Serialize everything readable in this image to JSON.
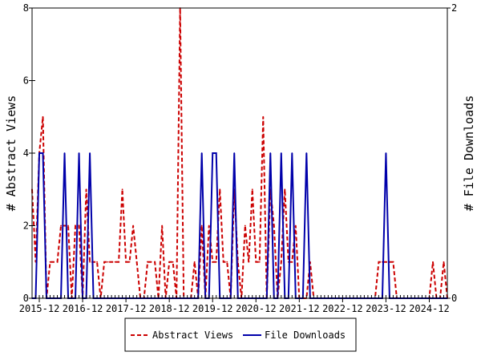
{
  "chart_data": {
    "type": "line",
    "title": "",
    "xlabel": "",
    "ylabel_left": "# Abstract Views",
    "ylabel_right": "# File Downloads",
    "x_range": [
      "2015-10",
      "2025-05"
    ],
    "x_tick_labels": [
      "2015-12",
      "2016-12",
      "2017-12",
      "2018-12",
      "2019-12",
      "2020-12",
      "2021-12",
      "2022-12",
      "2023-12",
      "2024-12"
    ],
    "y_left": {
      "min": 0,
      "max": 8,
      "ticks": [
        "0",
        "2",
        "4",
        "6",
        "8"
      ]
    },
    "y_right": {
      "min": 0,
      "max": 2,
      "ticks": [
        "0",
        "2"
      ]
    },
    "grid": false,
    "legend_position": "bottom",
    "series": [
      {
        "name": "Abstract Views",
        "axis": "left",
        "color": "#cc0000",
        "style": "dashed",
        "points": [
          [
            "2015-10",
            3
          ],
          [
            "2015-11",
            1
          ],
          [
            "2015-12",
            4
          ],
          [
            "2016-01",
            5
          ],
          [
            "2016-02",
            0
          ],
          [
            "2016-03",
            1
          ],
          [
            "2016-04",
            1
          ],
          [
            "2016-05",
            1
          ],
          [
            "2016-06",
            2
          ],
          [
            "2016-07",
            2
          ],
          [
            "2016-08",
            2
          ],
          [
            "2016-09",
            0
          ],
          [
            "2016-10",
            2
          ],
          [
            "2016-11",
            2
          ],
          [
            "2016-12",
            0
          ],
          [
            "2017-01",
            3
          ],
          [
            "2017-02",
            1
          ],
          [
            "2017-03",
            1
          ],
          [
            "2017-04",
            1
          ],
          [
            "2017-05",
            0
          ],
          [
            "2017-06",
            1
          ],
          [
            "2017-07",
            1
          ],
          [
            "2017-08",
            1
          ],
          [
            "2017-09",
            1
          ],
          [
            "2017-10",
            1
          ],
          [
            "2017-11",
            3
          ],
          [
            "2017-12",
            1
          ],
          [
            "2018-01",
            1
          ],
          [
            "2018-02",
            2
          ],
          [
            "2018-03",
            1
          ],
          [
            "2018-04",
            0
          ],
          [
            "2018-05",
            0
          ],
          [
            "2018-06",
            1
          ],
          [
            "2018-07",
            1
          ],
          [
            "2018-08",
            1
          ],
          [
            "2018-09",
            0
          ],
          [
            "2018-10",
            2
          ],
          [
            "2018-11",
            0
          ],
          [
            "2018-12",
            1
          ],
          [
            "2019-01",
            1
          ],
          [
            "2019-02",
            0
          ],
          [
            "2019-03",
            8
          ],
          [
            "2019-04",
            0
          ],
          [
            "2019-05",
            0
          ],
          [
            "2019-06",
            0
          ],
          [
            "2019-07",
            1
          ],
          [
            "2019-08",
            0
          ],
          [
            "2019-09",
            2
          ],
          [
            "2019-10",
            0
          ],
          [
            "2019-11",
            2
          ],
          [
            "2019-12",
            1
          ],
          [
            "2020-01",
            1
          ],
          [
            "2020-02",
            3
          ],
          [
            "2020-03",
            1
          ],
          [
            "2020-04",
            1
          ],
          [
            "2020-05",
            0
          ],
          [
            "2020-06",
            3
          ],
          [
            "2020-07",
            1
          ],
          [
            "2020-08",
            0
          ],
          [
            "2020-09",
            2
          ],
          [
            "2020-10",
            1
          ],
          [
            "2020-11",
            3
          ],
          [
            "2020-12",
            1
          ],
          [
            "2021-01",
            1
          ],
          [
            "2021-02",
            5
          ],
          [
            "2021-03",
            0
          ],
          [
            "2021-04",
            3
          ],
          [
            "2021-05",
            2
          ],
          [
            "2021-06",
            0
          ],
          [
            "2021-07",
            1
          ],
          [
            "2021-08",
            3
          ],
          [
            "2021-09",
            1
          ],
          [
            "2021-10",
            1
          ],
          [
            "2021-11",
            2
          ],
          [
            "2021-12",
            0
          ],
          [
            "2022-01",
            0
          ],
          [
            "2022-02",
            0
          ],
          [
            "2022-03",
            1
          ],
          [
            "2022-04",
            0
          ],
          [
            "2022-05",
            0
          ],
          [
            "2022-06",
            0
          ],
          [
            "2022-07",
            0
          ],
          [
            "2022-08",
            0
          ],
          [
            "2022-09",
            0
          ],
          [
            "2022-10",
            0
          ],
          [
            "2022-11",
            0
          ],
          [
            "2022-12",
            0
          ],
          [
            "2023-01",
            0
          ],
          [
            "2023-02",
            0
          ],
          [
            "2023-03",
            0
          ],
          [
            "2023-04",
            0
          ],
          [
            "2023-05",
            0
          ],
          [
            "2023-06",
            0
          ],
          [
            "2023-07",
            0
          ],
          [
            "2023-08",
            0
          ],
          [
            "2023-09",
            0
          ],
          [
            "2023-10",
            1
          ],
          [
            "2023-11",
            1
          ],
          [
            "2023-12",
            1
          ],
          [
            "2024-01",
            1
          ],
          [
            "2024-02",
            1
          ],
          [
            "2024-03",
            0
          ],
          [
            "2024-04",
            0
          ],
          [
            "2024-05",
            0
          ],
          [
            "2024-06",
            0
          ],
          [
            "2024-07",
            0
          ],
          [
            "2024-08",
            0
          ],
          [
            "2024-09",
            0
          ],
          [
            "2024-10",
            0
          ],
          [
            "2024-11",
            0
          ],
          [
            "2024-12",
            0
          ],
          [
            "2025-01",
            1
          ],
          [
            "2025-02",
            0
          ],
          [
            "2025-03",
            0
          ],
          [
            "2025-04",
            1
          ],
          [
            "2025-05",
            0
          ]
        ]
      },
      {
        "name": "File Downloads",
        "axis": "right",
        "color": "#0000aa",
        "style": "solid",
        "points": [
          [
            "2015-10",
            0
          ],
          [
            "2015-11",
            0
          ],
          [
            "2015-12",
            1
          ],
          [
            "2016-01",
            1
          ],
          [
            "2016-02",
            0
          ],
          [
            "2016-03",
            0
          ],
          [
            "2016-04",
            0
          ],
          [
            "2016-05",
            0
          ],
          [
            "2016-06",
            0
          ],
          [
            "2016-07",
            1
          ],
          [
            "2016-08",
            0
          ],
          [
            "2016-09",
            0
          ],
          [
            "2016-10",
            0
          ],
          [
            "2016-11",
            1
          ],
          [
            "2016-12",
            0
          ],
          [
            "2017-01",
            0
          ],
          [
            "2017-02",
            1
          ],
          [
            "2017-03",
            0
          ],
          [
            "2017-04",
            0
          ],
          [
            "2017-05",
            0
          ],
          [
            "2017-06",
            0
          ],
          [
            "2017-07",
            0
          ],
          [
            "2017-08",
            0
          ],
          [
            "2017-09",
            0
          ],
          [
            "2017-10",
            0
          ],
          [
            "2017-11",
            0
          ],
          [
            "2017-12",
            0
          ],
          [
            "2018-01",
            0
          ],
          [
            "2018-02",
            0
          ],
          [
            "2018-03",
            0
          ],
          [
            "2018-04",
            0
          ],
          [
            "2018-05",
            0
          ],
          [
            "2018-06",
            0
          ],
          [
            "2018-07",
            0
          ],
          [
            "2018-08",
            0
          ],
          [
            "2018-09",
            0
          ],
          [
            "2018-10",
            0
          ],
          [
            "2018-11",
            0
          ],
          [
            "2018-12",
            0
          ],
          [
            "2019-01",
            0
          ],
          [
            "2019-02",
            0
          ],
          [
            "2019-03",
            0
          ],
          [
            "2019-04",
            0
          ],
          [
            "2019-05",
            0
          ],
          [
            "2019-06",
            0
          ],
          [
            "2019-07",
            0
          ],
          [
            "2019-08",
            0
          ],
          [
            "2019-09",
            1
          ],
          [
            "2019-10",
            0
          ],
          [
            "2019-11",
            0
          ],
          [
            "2019-12",
            1
          ],
          [
            "2020-01",
            1
          ],
          [
            "2020-02",
            0
          ],
          [
            "2020-03",
            0
          ],
          [
            "2020-04",
            0
          ],
          [
            "2020-05",
            0
          ],
          [
            "2020-06",
            1
          ],
          [
            "2020-07",
            0
          ],
          [
            "2020-08",
            0
          ],
          [
            "2020-09",
            0
          ],
          [
            "2020-10",
            0
          ],
          [
            "2020-11",
            0
          ],
          [
            "2020-12",
            0
          ],
          [
            "2021-01",
            0
          ],
          [
            "2021-02",
            0
          ],
          [
            "2021-03",
            0
          ],
          [
            "2021-04",
            1
          ],
          [
            "2021-05",
            0
          ],
          [
            "2021-06",
            0
          ],
          [
            "2021-07",
            1
          ],
          [
            "2021-08",
            0
          ],
          [
            "2021-09",
            0
          ],
          [
            "2021-10",
            1
          ],
          [
            "2021-11",
            0
          ],
          [
            "2021-12",
            0
          ],
          [
            "2022-01",
            0
          ],
          [
            "2022-02",
            1
          ],
          [
            "2022-03",
            0
          ],
          [
            "2022-04",
            0
          ],
          [
            "2022-05",
            0
          ],
          [
            "2022-06",
            0
          ],
          [
            "2022-07",
            0
          ],
          [
            "2022-08",
            0
          ],
          [
            "2022-09",
            0
          ],
          [
            "2022-10",
            0
          ],
          [
            "2022-11",
            0
          ],
          [
            "2022-12",
            0
          ],
          [
            "2023-01",
            0
          ],
          [
            "2023-02",
            0
          ],
          [
            "2023-03",
            0
          ],
          [
            "2023-04",
            0
          ],
          [
            "2023-05",
            0
          ],
          [
            "2023-06",
            0
          ],
          [
            "2023-07",
            0
          ],
          [
            "2023-08",
            0
          ],
          [
            "2023-09",
            0
          ],
          [
            "2023-10",
            0
          ],
          [
            "2023-11",
            0
          ],
          [
            "2023-12",
            1
          ],
          [
            "2024-01",
            0
          ],
          [
            "2024-02",
            0
          ],
          [
            "2024-03",
            0
          ],
          [
            "2024-04",
            0
          ],
          [
            "2024-05",
            0
          ],
          [
            "2024-06",
            0
          ],
          [
            "2024-07",
            0
          ],
          [
            "2024-08",
            0
          ],
          [
            "2024-09",
            0
          ],
          [
            "2024-10",
            0
          ],
          [
            "2024-11",
            0
          ],
          [
            "2024-12",
            0
          ],
          [
            "2025-01",
            0
          ],
          [
            "2025-02",
            0
          ],
          [
            "2025-03",
            0
          ],
          [
            "2025-04",
            0
          ],
          [
            "2025-05",
            0
          ]
        ]
      }
    ]
  }
}
